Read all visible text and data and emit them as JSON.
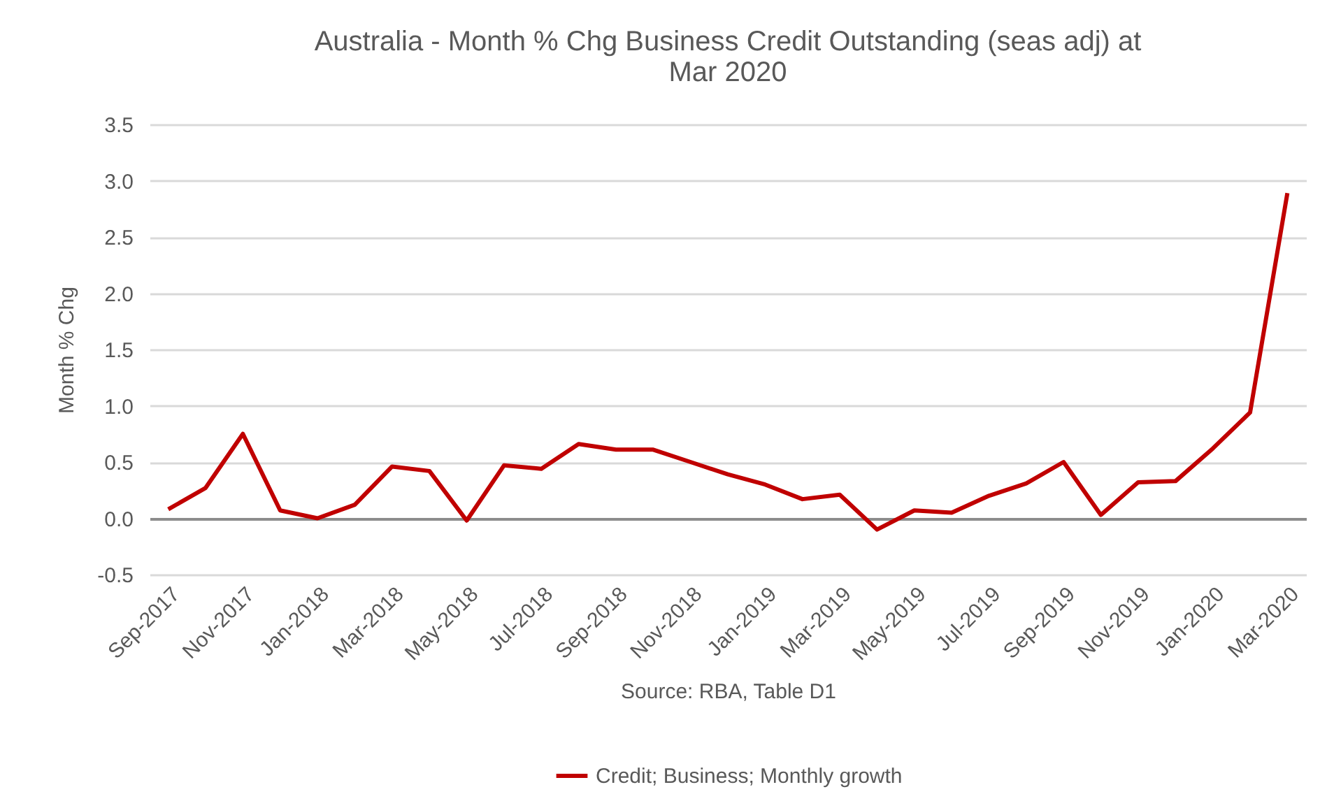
{
  "chart_data": {
    "type": "line",
    "title": "Australia - Month % Chg Business Credit Outstanding (seas adj) at Mar 2020",
    "ylabel": "Month % Chg",
    "annotations": [
      "Source: RBA, Table D1"
    ],
    "categories": [
      "Sep-2017",
      null,
      "Nov-2017",
      null,
      "Jan-2018",
      null,
      "Mar-2018",
      null,
      "May-2018",
      null,
      "Jul-2018",
      null,
      "Sep-2018",
      null,
      "Nov-2018",
      null,
      "Jan-2019",
      null,
      "Mar-2019",
      null,
      "May-2019",
      null,
      "Jul-2019",
      null,
      "Sep-2019",
      null,
      "Nov-2019",
      null,
      "Jan-2020",
      null,
      "Mar-2020"
    ],
    "series": [
      {
        "name": "Credit; Business; Monthly growth",
        "color": "#c00000",
        "values": [
          0.08,
          0.27,
          0.75,
          0.07,
          0.0,
          0.12,
          0.46,
          0.42,
          -0.02,
          0.47,
          0.44,
          0.66,
          0.61,
          0.61,
          0.5,
          0.39,
          0.3,
          0.17,
          0.21,
          -0.1,
          0.07,
          0.05,
          0.2,
          0.31,
          0.5,
          0.03,
          0.32,
          0.33,
          0.62,
          0.94,
          2.89
        ]
      }
    ],
    "ylim": [
      -0.5,
      3.5
    ],
    "yticks": [
      -0.5,
      {
        "value": 0,
        "label": "0.0"
      },
      0.5,
      {
        "value": 1,
        "label": "1.0"
      },
      1.5,
      {
        "value": 2,
        "label": "2.0"
      },
      2.5,
      {
        "value": 3,
        "label": "3.0"
      },
      3.5
    ],
    "grid": "y",
    "legend": "bottom"
  }
}
